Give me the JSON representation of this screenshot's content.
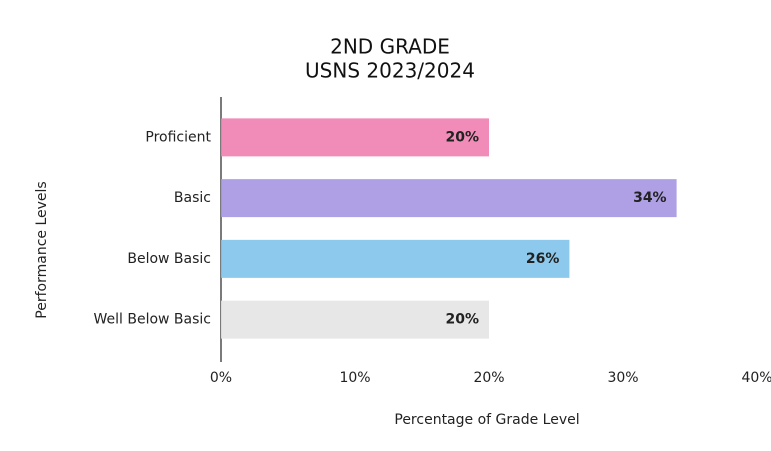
{
  "chart_data": {
    "type": "bar",
    "orientation": "horizontal",
    "title": "2ND GRADE",
    "subtitle": "USNS 2023/2024",
    "x_label": "Percentage of Grade Level",
    "y_label": "Performance Levels",
    "categories": [
      "Proficient",
      "Basic",
      "Below Basic",
      "Well Below Basic"
    ],
    "values": [
      20,
      34,
      26,
      20
    ],
    "value_labels": [
      "20%",
      "34%",
      "26%",
      "20%"
    ],
    "colors": [
      "#f07fb0",
      "#a696e2",
      "#7fc3ea",
      "#e4e4e4"
    ],
    "xlim": [
      0,
      40
    ],
    "xticks": [
      {
        "value": 0,
        "label": "0%"
      },
      {
        "value": 10,
        "label": "10%"
      },
      {
        "value": 20,
        "label": "20%"
      },
      {
        "value": 30,
        "label": "30%"
      },
      {
        "value": 40,
        "label": "40%"
      }
    ]
  }
}
